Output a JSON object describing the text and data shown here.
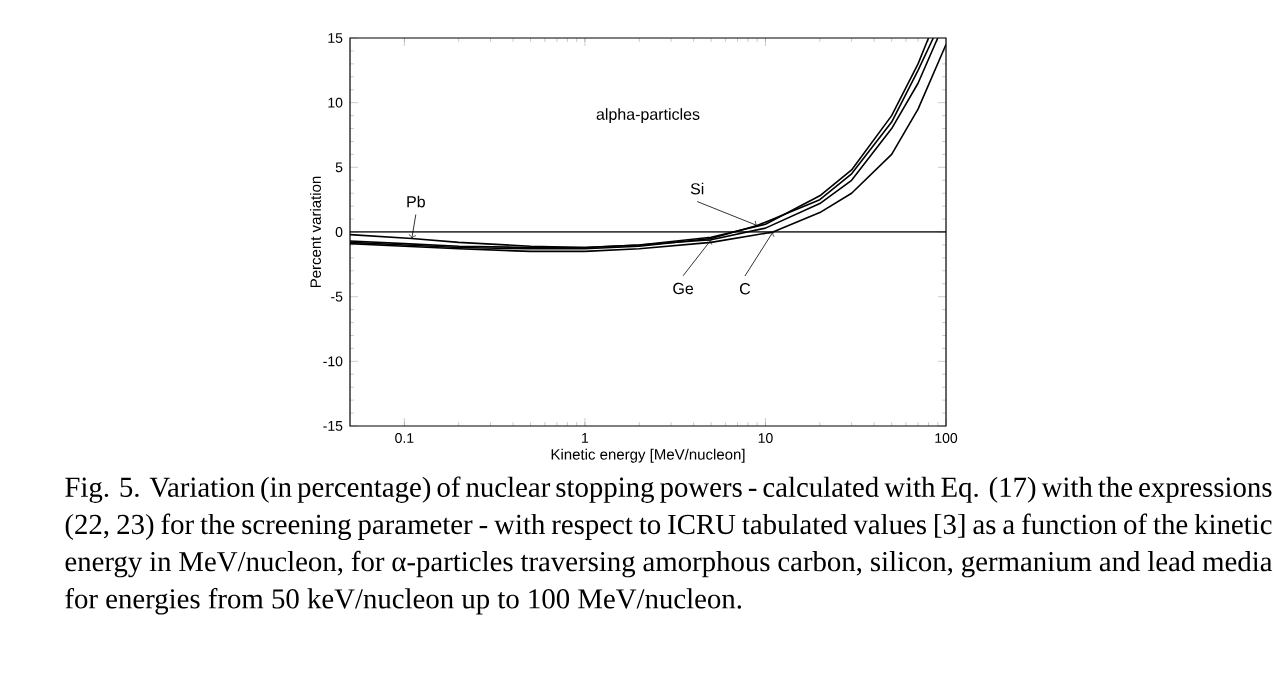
{
  "chart_data": {
    "type": "line",
    "xlabel": "Kinetic energy  [MeV/nucleon]",
    "ylabel": "Percent variation",
    "log": "x",
    "xlim": [
      0.05,
      100
    ],
    "ylim": [
      -15,
      15
    ],
    "xticks": [
      0.1,
      1,
      10,
      100
    ],
    "yticks": [
      -15,
      -10,
      -5,
      0,
      5,
      10,
      15
    ],
    "series": [
      {
        "name": "C",
        "color": "#000000",
        "line_style": "solid",
        "x": [
          0.05,
          0.1,
          0.2,
          0.5,
          1,
          2,
          5,
          11,
          20,
          30,
          50,
          70,
          100
        ],
        "values": [
          -0.9,
          -1.1,
          -1.3,
          -1.5,
          -1.5,
          -1.3,
          -0.8,
          0.0,
          1.5,
          3.0,
          6.0,
          9.5,
          14.5
        ]
      },
      {
        "name": "Si",
        "color": "#000000",
        "line_style": "solid",
        "x": [
          0.05,
          0.1,
          0.2,
          0.5,
          1,
          2,
          5,
          9,
          20,
          30,
          50,
          70,
          85
        ],
        "values": [
          -0.8,
          -1.0,
          -1.2,
          -1.3,
          -1.3,
          -1.1,
          -0.5,
          0.5,
          2.5,
          4.5,
          8.5,
          12.5,
          15
        ]
      },
      {
        "name": "Ge",
        "color": "#000000",
        "line_style": "solid",
        "x": [
          0.05,
          0.1,
          0.2,
          0.5,
          1,
          2,
          5,
          10,
          20,
          30,
          50,
          70,
          90
        ],
        "values": [
          -0.7,
          -0.9,
          -1.1,
          -1.2,
          -1.2,
          -1.0,
          -0.6,
          0.3,
          2.2,
          4.0,
          8.0,
          11.5,
          15
        ]
      },
      {
        "name": "Pb",
        "color": "#000000",
        "line_style": "solid",
        "x": [
          0.05,
          0.11,
          0.2,
          0.5,
          1,
          2,
          5,
          10,
          20,
          30,
          50,
          70,
          80
        ],
        "values": [
          -0.2,
          -0.5,
          -0.8,
          -1.1,
          -1.2,
          -1.0,
          -0.4,
          0.6,
          2.8,
          4.8,
          9.0,
          13.0,
          15
        ]
      }
    ],
    "ref_lines": [
      {
        "axis": "y",
        "value": 0,
        "color": "#000000"
      }
    ],
    "annotations": [
      "alpha-particles",
      "Fig. 5.  Variation (in percentage) of nuclear stopping powers - calculated with Eq. (17) with the expressions (22, 23) for the screening parameter - with respect to ICRU tabulated values [3] as a function of the kinetic energy in MeV/nucleon, for α-particles traversing amorphous carbon, silicon, germanium and lead media for energies from 50 keV/nucleon up to 100 MeV/nucleon."
    ]
  }
}
